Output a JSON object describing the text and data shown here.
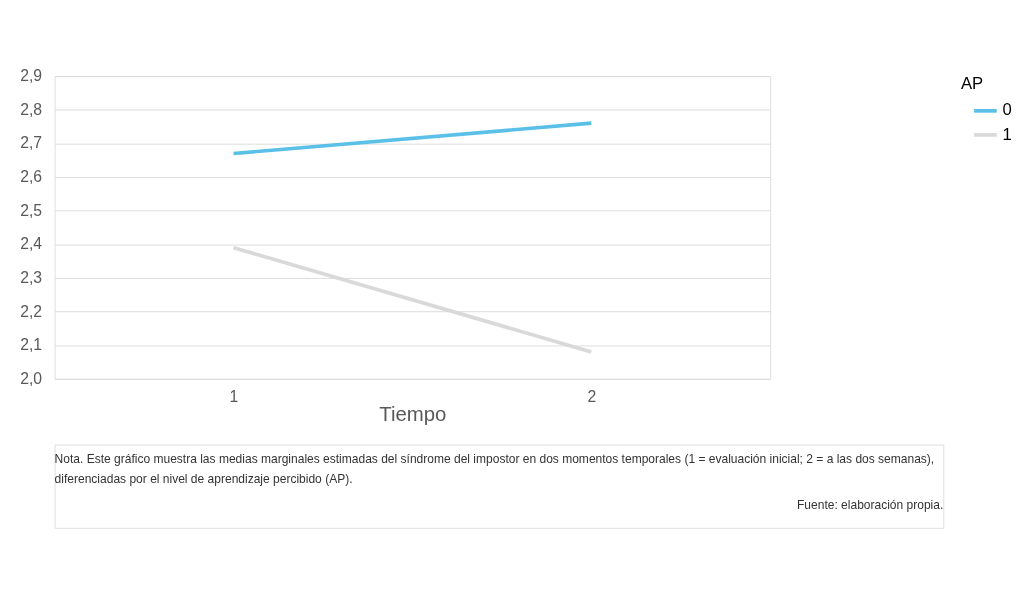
{
  "chart_data": {
    "type": "line",
    "xlabel": "Tiempo",
    "legend_title": "AP",
    "categories": [
      "1",
      "2"
    ],
    "series": [
      {
        "name": "0",
        "color": "#5bc0e8",
        "values": [
          2.67,
          2.76
        ]
      },
      {
        "name": "1",
        "color": "#d9d9d9",
        "values": [
          2.39,
          2.08
        ]
      }
    ],
    "ylim": [
      2.0,
      2.9
    ],
    "yticks": [
      {
        "value": 2.0,
        "label": "2,0"
      },
      {
        "value": 2.1,
        "label": "2,1"
      },
      {
        "value": 2.2,
        "label": "2,2"
      },
      {
        "value": 2.3,
        "label": "2,3"
      },
      {
        "value": 2.4,
        "label": "2,4"
      },
      {
        "value": 2.5,
        "label": "2,5"
      },
      {
        "value": 2.6,
        "label": "2,6"
      },
      {
        "value": 2.7,
        "label": "2,7"
      },
      {
        "value": 2.8,
        "label": "2,8"
      },
      {
        "value": 2.9,
        "label": "2,9"
      }
    ],
    "grid": "y",
    "legend": "right",
    "marker": "none",
    "line_style": "solid",
    "annotations": [
      "Nota. Este gráfico muestra las medias marginales estimadas del síndrome del impostor en dos momentos temporales (1 = evaluación inicial; 2 = a las dos semanas), diferenciadas por el nivel de aprendizaje percibido (AP).",
      "Fuente: elaboración propia."
    ]
  }
}
